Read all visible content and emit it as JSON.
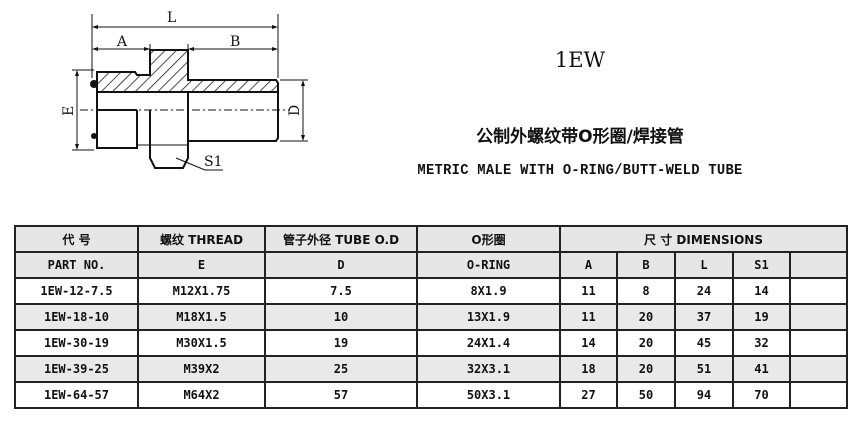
{
  "drawing": {
    "labels": {
      "L": "L",
      "A": "A",
      "B": "B",
      "E": "E",
      "D": "D",
      "S1": "S1"
    }
  },
  "model": "1EW",
  "title_cn": "公制外螺纹带O形圈/焊接管",
  "title_en": "METRIC MALE WITH O-RING/BUTT-WELD TUBE",
  "table": {
    "header1": {
      "part": "代  号",
      "thread": "螺纹 THREAD",
      "tube": "管子外径 TUBE O.D",
      "oring": "O形圈",
      "dims": "尺 寸    DIMENSIONS"
    },
    "header2": {
      "part": "PART  NO.",
      "thread": "E",
      "tube": "D",
      "oring": "O-RING",
      "a": "A",
      "b": "B",
      "l": "L",
      "s1": "S1"
    },
    "rows": [
      {
        "part": "1EW-12-7.5",
        "e": "M12X1.75",
        "d": "7.5",
        "oring": "8X1.9",
        "a": "11",
        "b": "8",
        "l": "24",
        "s1": "14"
      },
      {
        "part": "1EW-18-10",
        "e": "M18X1.5",
        "d": "10",
        "oring": "13X1.9",
        "a": "11",
        "b": "20",
        "l": "37",
        "s1": "19"
      },
      {
        "part": "1EW-30-19",
        "e": "M30X1.5",
        "d": "19",
        "oring": "24X1.4",
        "a": "14",
        "b": "20",
        "l": "45",
        "s1": "32"
      },
      {
        "part": "1EW-39-25",
        "e": "M39X2",
        "d": "25",
        "oring": "32X3.1",
        "a": "18",
        "b": "20",
        "l": "51",
        "s1": "41"
      },
      {
        "part": "1EW-64-57",
        "e": "M64X2",
        "d": "57",
        "oring": "50X3.1",
        "a": "27",
        "b": "50",
        "l": "94",
        "s1": "70"
      }
    ]
  }
}
